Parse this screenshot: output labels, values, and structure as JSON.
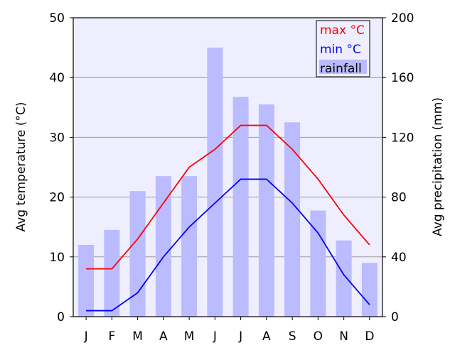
{
  "chart_data": {
    "type": "bar+line",
    "categories": [
      "J",
      "F",
      "M",
      "A",
      "M",
      "J",
      "J",
      "A",
      "S",
      "O",
      "N",
      "D"
    ],
    "series": [
      {
        "name": "rainfall",
        "type": "bar",
        "axis": "right",
        "color": "#bbbbff",
        "values": [
          48,
          58,
          84,
          94,
          94,
          180,
          147,
          142,
          130,
          71,
          51,
          36
        ]
      },
      {
        "name": "max °C",
        "type": "line",
        "axis": "left",
        "color": "#ff0000",
        "values": [
          8,
          8,
          13,
          19,
          25,
          28,
          32,
          32,
          28,
          23,
          17,
          12
        ]
      },
      {
        "name": "min °C",
        "type": "line",
        "axis": "left",
        "color": "#0000ff",
        "values": [
          1,
          1,
          4,
          10,
          15,
          19,
          23,
          23,
          19,
          14,
          7,
          2
        ]
      }
    ],
    "ylabel": "Avg temperature (°C)",
    "ylabel_right": "Avg precipitation (mm)",
    "ylim": [
      0,
      50
    ],
    "ylim_right": [
      0,
      200
    ],
    "yticks": [
      0,
      10,
      20,
      30,
      40,
      50
    ],
    "yticks_right": [
      0,
      40,
      80,
      120,
      160,
      200
    ],
    "grid": true,
    "legend_position": "top-right",
    "background": "#eeeeff"
  }
}
